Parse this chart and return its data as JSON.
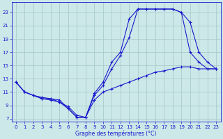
{
  "xlabel": "Graphe des températures (°C)",
  "background_color": "#cce8e8",
  "grid_color": "#aacccc",
  "line_color": "#1a1acc",
  "xlim": [
    -0.5,
    23.5
  ],
  "ylim": [
    6.5,
    24.5
  ],
  "xticks": [
    0,
    1,
    2,
    3,
    4,
    5,
    6,
    7,
    8,
    9,
    10,
    11,
    12,
    13,
    14,
    15,
    16,
    17,
    18,
    19,
    20,
    21,
    22,
    23
  ],
  "yticks": [
    7,
    9,
    11,
    13,
    15,
    17,
    19,
    21,
    23
  ],
  "series1_x": [
    0,
    1,
    2,
    3,
    4,
    5,
    6,
    7,
    8,
    9,
    10,
    11,
    12,
    13,
    14,
    15,
    16,
    17,
    18,
    19,
    20,
    21,
    22,
    23
  ],
  "series1_y": [
    12.5,
    11.0,
    10.5,
    10.2,
    10.0,
    9.8,
    8.5,
    7.2,
    7.2,
    9.8,
    11.0,
    11.5,
    12.0,
    12.5,
    13.0,
    13.5,
    14.0,
    14.2,
    14.5,
    14.8,
    14.8,
    14.5,
    14.5,
    14.5
  ],
  "series2_x": [
    0,
    1,
    2,
    3,
    4,
    5,
    6,
    7,
    8,
    9,
    10,
    11,
    12,
    13,
    14,
    15,
    16,
    17,
    18,
    19,
    20,
    21,
    22,
    23
  ],
  "series2_y": [
    12.5,
    11.0,
    10.5,
    10.0,
    10.0,
    9.5,
    8.5,
    7.2,
    7.2,
    10.5,
    12.0,
    14.5,
    16.5,
    19.2,
    23.5,
    23.5,
    23.5,
    23.5,
    23.5,
    23.0,
    21.5,
    17.0,
    15.5,
    14.5
  ],
  "series3_x": [
    0,
    1,
    2,
    3,
    4,
    5,
    6,
    7,
    8,
    9,
    10,
    11,
    12,
    13,
    14,
    15,
    16,
    17,
    18,
    19,
    20,
    21,
    22,
    23
  ],
  "series3_y": [
    12.5,
    11.0,
    10.5,
    10.0,
    9.8,
    9.5,
    8.8,
    7.5,
    7.2,
    10.8,
    12.5,
    15.5,
    17.0,
    22.0,
    23.5,
    23.5,
    23.5,
    23.5,
    23.5,
    23.0,
    17.0,
    15.5,
    14.5,
    14.5
  ]
}
